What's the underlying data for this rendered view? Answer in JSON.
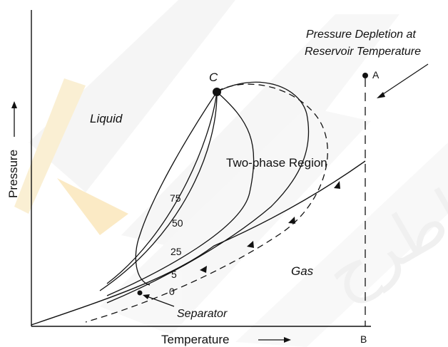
{
  "axes": {
    "x_label": "Temperature",
    "y_label": "Pressure"
  },
  "regions": {
    "liquid": "Liquid",
    "two_phase": "Two-phase Region",
    "gas": "Gas"
  },
  "critical_point": "C",
  "path_note": {
    "line1": "Pressure Depletion at",
    "line2": "Reservoir Temperature"
  },
  "points": {
    "a": "A",
    "b": "B"
  },
  "separator": "Separator",
  "quality_lines": [
    "75",
    "50",
    "25",
    "5",
    "0"
  ],
  "watermark": "واطرح",
  "colors": {
    "ink": "#111111",
    "watermark": "#e6e6e6",
    "pencil_yellow": "#f3c867"
  }
}
